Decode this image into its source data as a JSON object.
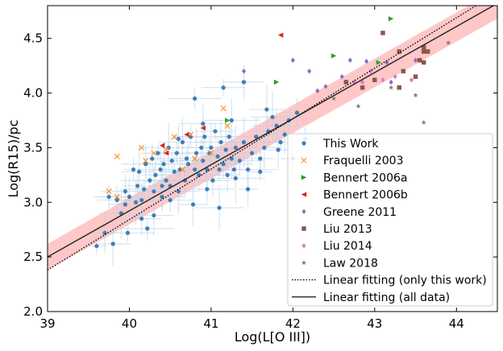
{
  "chart_data": {
    "type": "scatter",
    "xlabel": "Log(L[O III])",
    "ylabel": "Log(R15)/pc",
    "xlim": [
      39.0,
      44.5
    ],
    "ylim": [
      2.0,
      4.8
    ],
    "xticks": [
      "39",
      "40",
      "41",
      "42",
      "43",
      "44"
    ],
    "yticks": [
      "2.0",
      "2.5",
      "3.0",
      "3.5",
      "4.0",
      "4.5"
    ],
    "xtick_values": [
      39,
      40,
      41,
      42,
      43,
      44
    ],
    "ytick_values": [
      2.0,
      2.5,
      3.0,
      3.5,
      4.0,
      4.5
    ],
    "legend_position": "lower-right",
    "colors": {
      "this_work": "#3d7fb9",
      "fraquelli": "#ff8c1a",
      "bennert_a": "#2ca02c",
      "bennert_b": "#d62728",
      "greene": "#9467bd",
      "liu2013": "#8c564b",
      "liu2014": "#e377c2",
      "law": "#7f7f7f",
      "band": "#ff9b9b"
    },
    "series": [
      {
        "name": "This Work",
        "marker": "circle",
        "color": "#3d7fb9",
        "points": [
          [
            39.6,
            2.6
          ],
          [
            39.7,
            2.72
          ],
          [
            39.75,
            3.05
          ],
          [
            39.8,
            2.62
          ],
          [
            39.85,
            3.02
          ],
          [
            39.9,
            2.9
          ],
          [
            39.95,
            3.1
          ],
          [
            39.98,
            2.72
          ],
          [
            40.0,
            3.05
          ],
          [
            40.05,
            3.3
          ],
          [
            40.08,
            3.0
          ],
          [
            40.1,
            3.15
          ],
          [
            40.12,
            3.28
          ],
          [
            40.15,
            2.85
          ],
          [
            40.18,
            3.12
          ],
          [
            40.2,
            3.35
          ],
          [
            40.22,
            2.76
          ],
          [
            40.25,
            3.2
          ],
          [
            40.28,
            3.4
          ],
          [
            40.3,
            3.1
          ],
          [
            40.32,
            3.25
          ],
          [
            40.35,
            3.45
          ],
          [
            40.38,
            3.3
          ],
          [
            40.4,
            3.05
          ],
          [
            40.42,
            3.35
          ],
          [
            40.45,
            3.2
          ],
          [
            40.48,
            3.5
          ],
          [
            40.5,
            3.15
          ],
          [
            40.52,
            3.38
          ],
          [
            40.55,
            3.28
          ],
          [
            40.58,
            3.45
          ],
          [
            40.6,
            3.1
          ],
          [
            40.62,
            3.3
          ],
          [
            40.65,
            3.55
          ],
          [
            40.68,
            3.2
          ],
          [
            40.7,
            3.4
          ],
          [
            40.72,
            3.35
          ],
          [
            40.75,
            3.6
          ],
          [
            40.78,
            2.98
          ],
          [
            40.8,
            3.3
          ],
          [
            40.82,
            3.45
          ],
          [
            40.85,
            3.25
          ],
          [
            40.88,
            3.5
          ],
          [
            40.9,
            3.38
          ],
          [
            40.92,
            3.6
          ],
          [
            40.95,
            3.3
          ],
          [
            40.98,
            3.45
          ],
          [
            41.0,
            3.5
          ],
          [
            41.02,
            3.2
          ],
          [
            41.05,
            3.65
          ],
          [
            41.08,
            3.42
          ],
          [
            41.1,
            3.3
          ],
          [
            41.12,
            3.55
          ],
          [
            41.15,
            3.35
          ],
          [
            41.18,
            3.48
          ],
          [
            41.2,
            3.25
          ],
          [
            41.22,
            3.6
          ],
          [
            41.25,
            3.4
          ],
          [
            41.28,
            3.3
          ],
          [
            41.3,
            3.5
          ],
          [
            41.35,
            3.38
          ],
          [
            41.4,
            3.55
          ],
          [
            41.45,
            3.3
          ],
          [
            41.5,
            3.45
          ],
          [
            41.55,
            3.6
          ],
          [
            41.6,
            3.4
          ],
          [
            41.65,
            3.5
          ],
          [
            41.7,
            3.65
          ],
          [
            41.75,
            3.78
          ],
          [
            41.8,
            3.7
          ],
          [
            41.85,
            3.55
          ],
          [
            41.9,
            3.62
          ],
          [
            41.95,
            3.75
          ],
          [
            42.0,
            3.4
          ],
          [
            42.05,
            3.82
          ],
          [
            41.68,
            3.85
          ],
          [
            41.4,
            4.1
          ],
          [
            41.15,
            4.05
          ],
          [
            40.9,
            3.72
          ],
          [
            40.8,
            3.95
          ],
          [
            41.25,
            3.75
          ],
          [
            40.6,
            3.58
          ],
          [
            40.4,
            3.15
          ],
          [
            40.15,
            3.02
          ],
          [
            39.95,
            2.98
          ],
          [
            40.3,
            2.88
          ],
          [
            40.5,
            3.02
          ],
          [
            41.1,
            2.95
          ],
          [
            40.95,
            3.12
          ],
          [
            41.3,
            3.22
          ],
          [
            41.45,
            3.12
          ],
          [
            41.6,
            3.28
          ],
          [
            41.82,
            3.48
          ],
          [
            42.15,
            3.58
          ]
        ]
      },
      {
        "name": "Fraquelli 2003",
        "marker": "x",
        "color": "#ff8c1a",
        "points": [
          [
            39.75,
            3.1
          ],
          [
            39.85,
            3.05
          ],
          [
            39.85,
            3.42
          ],
          [
            40.15,
            3.5
          ],
          [
            40.2,
            3.38
          ],
          [
            40.3,
            3.45
          ],
          [
            40.45,
            3.48
          ],
          [
            40.55,
            3.6
          ],
          [
            40.75,
            3.62
          ],
          [
            41.0,
            3.45
          ],
          [
            41.15,
            3.86
          ],
          [
            41.2,
            3.7
          ],
          [
            40.8,
            3.4
          ],
          [
            40.65,
            3.3
          ]
        ]
      },
      {
        "name": "Bennert 2006a",
        "marker": "triangle-right",
        "color": "#2ca02c",
        "points": [
          [
            41.2,
            3.75
          ],
          [
            41.8,
            4.1
          ],
          [
            42.5,
            4.34
          ],
          [
            43.05,
            4.28
          ],
          [
            43.2,
            4.68
          ]
        ]
      },
      {
        "name": "Bennert 2006b",
        "marker": "triangle-left",
        "color": "#d62728",
        "points": [
          [
            40.4,
            3.52
          ],
          [
            40.45,
            3.45
          ],
          [
            40.7,
            3.62
          ],
          [
            40.9,
            3.68
          ],
          [
            41.85,
            4.53
          ]
        ]
      },
      {
        "name": "Greene 2011",
        "marker": "diamond",
        "color": "#9467bd",
        "points": [
          [
            41.4,
            4.2
          ],
          [
            42.0,
            4.3
          ],
          [
            42.2,
            4.2
          ],
          [
            42.7,
            4.3
          ],
          [
            42.9,
            4.29
          ],
          [
            43.15,
            4.28
          ],
          [
            43.2,
            4.1
          ],
          [
            43.5,
            4.3
          ],
          [
            42.6,
            4.15
          ],
          [
            42.4,
            4.06
          ],
          [
            42.3,
            4.02
          ]
        ]
      },
      {
        "name": "Liu 2013",
        "marker": "square",
        "color": "#8c564b",
        "points": [
          [
            43.1,
            4.55
          ],
          [
            42.65,
            4.1
          ],
          [
            42.85,
            4.05
          ],
          [
            43.0,
            4.12
          ],
          [
            43.3,
            4.38
          ],
          [
            43.3,
            4.05
          ],
          [
            43.35,
            4.2
          ],
          [
            43.55,
            4.3
          ],
          [
            43.6,
            4.28
          ],
          [
            43.6,
            4.38
          ],
          [
            43.6,
            4.42
          ],
          [
            43.65,
            4.38
          ],
          [
            43.5,
            4.15
          ]
        ]
      },
      {
        "name": "Liu 2014",
        "marker": "diamond",
        "color": "#e377c2",
        "points": [
          [
            42.75,
            4.1
          ],
          [
            42.85,
            4.1
          ],
          [
            42.95,
            4.2
          ],
          [
            43.1,
            4.12
          ],
          [
            43.25,
            4.15
          ],
          [
            43.45,
            4.12
          ]
        ]
      },
      {
        "name": "Law 2018",
        "marker": "star",
        "color": "#7f7f7f",
        "points": [
          [
            42.8,
            3.88
          ],
          [
            43.6,
            3.73
          ],
          [
            43.9,
            4.46
          ],
          [
            43.5,
            3.98
          ],
          [
            43.2,
            4.05
          ],
          [
            42.5,
            3.95
          ]
        ]
      }
    ],
    "fits": [
      {
        "name": "Linear fitting (only this work)",
        "style": "dotted",
        "color": "#000000",
        "x": [
          39.0,
          44.5
        ],
        "y": [
          2.38,
          4.92
        ]
      },
      {
        "name": "Linear fitting (all data)",
        "style": "solid",
        "color": "#222222",
        "x": [
          39.0,
          44.5
        ],
        "y": [
          2.5,
          4.82
        ]
      }
    ],
    "band": {
      "color": "#ff9b9b",
      "x": [
        39.0,
        44.5
      ],
      "y_lower": [
        2.38,
        4.68
      ],
      "y_upper": [
        2.62,
        4.95
      ]
    }
  }
}
